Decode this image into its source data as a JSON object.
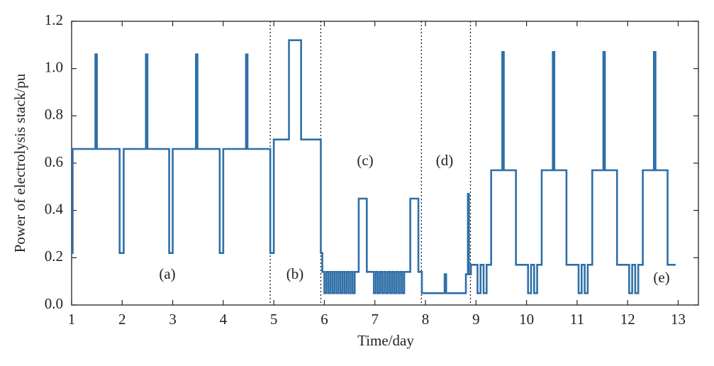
{
  "chart_data": {
    "type": "line",
    "xlabel": "Time/day",
    "ylabel": "Power of electrolysis stack/pu",
    "xlim": [
      1,
      13.4
    ],
    "ylim": [
      0,
      1.2
    ],
    "xticks": [
      1,
      2,
      3,
      4,
      5,
      6,
      7,
      8,
      9,
      10,
      11,
      12,
      13
    ],
    "yticks": [
      {
        "value": 0,
        "label": "0.0"
      },
      0.2,
      0.4,
      0.6,
      0.8,
      {
        "value": 1,
        "label": "1.0"
      },
      1.2
    ],
    "vlines": [
      4.93,
      5.93,
      7.92,
      8.89
    ],
    "annotations": [
      "(a)",
      "(b)",
      "(c)",
      "(d)",
      "(e)"
    ],
    "series": [
      {
        "color": "#2f6fa8",
        "x": [
          1.0,
          1.02,
          1.02,
          1.47,
          1.47,
          1.5,
          1.5,
          1.95,
          1.95,
          2.03,
          2.03,
          2.47,
          2.47,
          2.5,
          2.5,
          2.93,
          2.93,
          3.0,
          3.0,
          3.46,
          3.46,
          3.49,
          3.49,
          3.93,
          3.93,
          4.0,
          4.0,
          4.45,
          4.45,
          4.48,
          4.48,
          4.93,
          4.93,
          5.0,
          5.0,
          5.3,
          5.3,
          5.54,
          5.54,
          5.93,
          5.93,
          5.96,
          5.96,
          6.0,
          6.0,
          6.04,
          6.04,
          6.08,
          6.08,
          6.12,
          6.12,
          6.16,
          6.16,
          6.2,
          6.2,
          6.24,
          6.24,
          6.28,
          6.28,
          6.32,
          6.32,
          6.36,
          6.36,
          6.4,
          6.4,
          6.44,
          6.44,
          6.48,
          6.48,
          6.52,
          6.52,
          6.56,
          6.56,
          6.6,
          6.6,
          6.68,
          6.68,
          6.84,
          6.84,
          6.98,
          6.98,
          7.02,
          7.02,
          7.06,
          7.06,
          7.1,
          7.1,
          7.14,
          7.14,
          7.18,
          7.18,
          7.22,
          7.22,
          7.26,
          7.26,
          7.3,
          7.3,
          7.34,
          7.34,
          7.38,
          7.38,
          7.42,
          7.42,
          7.46,
          7.46,
          7.5,
          7.5,
          7.54,
          7.54,
          7.58,
          7.58,
          7.7,
          7.7,
          7.86,
          7.86,
          7.93,
          7.93,
          8.38,
          8.38,
          8.41,
          8.41,
          8.8,
          8.8,
          8.84,
          8.84,
          8.86,
          8.86,
          8.9,
          8.9,
          9.03,
          9.03,
          9.09,
          9.09,
          9.15,
          9.15,
          9.21,
          9.21,
          9.3,
          9.3,
          9.52,
          9.52,
          9.55,
          9.55,
          9.79,
          9.79,
          10.03,
          10.03,
          10.09,
          10.09,
          10.15,
          10.15,
          10.21,
          10.21,
          10.3,
          10.3,
          10.52,
          10.52,
          10.55,
          10.55,
          10.79,
          10.79,
          11.03,
          11.03,
          11.09,
          11.09,
          11.15,
          11.15,
          11.21,
          11.21,
          11.3,
          11.3,
          11.52,
          11.52,
          11.55,
          11.55,
          11.79,
          11.79,
          12.03,
          12.03,
          12.09,
          12.09,
          12.15,
          12.15,
          12.21,
          12.21,
          12.3,
          12.3,
          12.52,
          12.52,
          12.55,
          12.55,
          12.79,
          12.79,
          12.95
        ],
        "values": [
          0.22,
          0.22,
          0.66,
          0.66,
          1.06,
          1.06,
          0.66,
          0.66,
          0.22,
          0.22,
          0.66,
          0.66,
          1.06,
          1.06,
          0.66,
          0.66,
          0.22,
          0.22,
          0.66,
          0.66,
          1.06,
          1.06,
          0.66,
          0.66,
          0.22,
          0.22,
          0.66,
          0.66,
          1.06,
          1.06,
          0.66,
          0.66,
          0.22,
          0.22,
          0.7,
          0.7,
          1.12,
          1.12,
          0.7,
          0.7,
          0.22,
          0.22,
          0.14,
          0.14,
          0.05,
          0.05,
          0.14,
          0.14,
          0.05,
          0.05,
          0.14,
          0.14,
          0.05,
          0.05,
          0.14,
          0.14,
          0.05,
          0.05,
          0.14,
          0.14,
          0.05,
          0.05,
          0.14,
          0.14,
          0.05,
          0.05,
          0.14,
          0.14,
          0.05,
          0.05,
          0.14,
          0.14,
          0.05,
          0.05,
          0.14,
          0.14,
          0.45,
          0.45,
          0.14,
          0.14,
          0.05,
          0.05,
          0.14,
          0.14,
          0.05,
          0.05,
          0.14,
          0.14,
          0.05,
          0.05,
          0.14,
          0.14,
          0.05,
          0.05,
          0.14,
          0.14,
          0.05,
          0.05,
          0.14,
          0.14,
          0.05,
          0.05,
          0.14,
          0.14,
          0.05,
          0.05,
          0.14,
          0.14,
          0.05,
          0.05,
          0.14,
          0.14,
          0.45,
          0.45,
          0.14,
          0.14,
          0.05,
          0.05,
          0.13,
          0.13,
          0.05,
          0.05,
          0.13,
          0.13,
          0.47,
          0.47,
          0.13,
          0.13,
          0.17,
          0.17,
          0.05,
          0.05,
          0.17,
          0.17,
          0.05,
          0.05,
          0.17,
          0.17,
          0.57,
          0.57,
          1.07,
          1.07,
          0.57,
          0.57,
          0.17,
          0.17,
          0.05,
          0.05,
          0.17,
          0.17,
          0.05,
          0.05,
          0.17,
          0.17,
          0.57,
          0.57,
          1.07,
          1.07,
          0.57,
          0.57,
          0.17,
          0.17,
          0.05,
          0.05,
          0.17,
          0.17,
          0.05,
          0.05,
          0.17,
          0.17,
          0.57,
          0.57,
          1.07,
          1.07,
          0.57,
          0.57,
          0.17,
          0.17,
          0.05,
          0.05,
          0.17,
          0.17,
          0.05,
          0.05,
          0.17,
          0.17,
          0.57,
          0.57,
          1.07,
          1.07,
          0.57,
          0.57,
          0.17,
          0.17
        ]
      }
    ]
  }
}
